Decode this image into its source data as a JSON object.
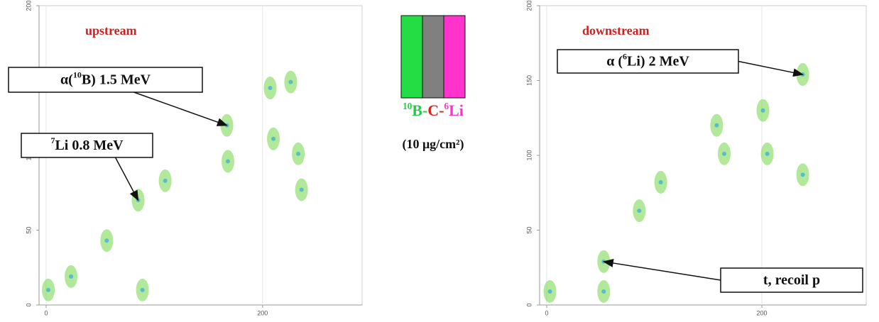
{
  "chart_data": [
    {
      "type": "scatter",
      "xlim": [
        0,
        292
      ],
      "ylim": [
        0,
        200
      ],
      "xticks": [
        0,
        200
      ],
      "yticks": [
        0,
        50,
        100,
        150,
        200
      ],
      "title": "upstream",
      "series": [
        {
          "color": "#7ed957",
          "x": [
            2,
            23,
            56,
            85,
            110,
            167,
            168,
            207,
            210,
            226,
            233,
            236,
            89
          ],
          "y": [
            10,
            19,
            43,
            70,
            83,
            120,
            96,
            145,
            111,
            149,
            101,
            77,
            10
          ]
        }
      ],
      "annotations": [
        {
          "parts": [
            {
              "text": "α("
            },
            {
              "text": "10",
              "sup": true
            },
            {
              "text": "B) 1.5 MeV"
            }
          ],
          "x": 167,
          "y": 120
        },
        {
          "parts": [
            {
              "text": "7",
              "sup": true
            },
            {
              "text": "Li 0.8 MeV"
            }
          ],
          "x": 85,
          "y": 70
        }
      ]
    },
    {
      "type": "scatter",
      "xlim": [
        0,
        297
      ],
      "ylim": [
        0,
        200
      ],
      "xticks": [
        0,
        200
      ],
      "yticks": [
        0,
        50,
        100,
        150,
        200
      ],
      "title": "downstream",
      "series": [
        {
          "color": "#7ed957",
          "x": [
            3,
            53,
            86,
            106,
            158,
            165,
            201,
            205,
            238,
            238,
            53
          ],
          "y": [
            9,
            29,
            63,
            82,
            120,
            101,
            130,
            101,
            154,
            87,
            9
          ]
        }
      ],
      "annotations": [
        {
          "parts": [
            {
              "text": "α ("
            },
            {
              "text": "6",
              "sup": true
            },
            {
              "text": "Li) 2 MeV"
            }
          ],
          "x": 238,
          "y": 154
        },
        {
          "parts": [
            {
              "text": "t, recoil p"
            }
          ],
          "x": 53,
          "y": 29
        }
      ]
    }
  ],
  "target": {
    "layers": [
      "#22dd44",
      "#808080",
      "#ff33cc"
    ],
    "label": [
      {
        "text": "10",
        "sup": true,
        "color": "#22cc44"
      },
      {
        "text": "B",
        "color": "#22cc44"
      },
      {
        "text": "-",
        "color": "#22cc44"
      },
      {
        "text": "C",
        "color": "#dd2222"
      },
      {
        "text": "-",
        "color": "#dd2222"
      },
      {
        "text": "6",
        "sup": true,
        "color": "#ff33cc"
      },
      {
        "text": "Li",
        "color": "#ff33cc"
      }
    ],
    "thickness": "(10 μg/cm²)"
  }
}
